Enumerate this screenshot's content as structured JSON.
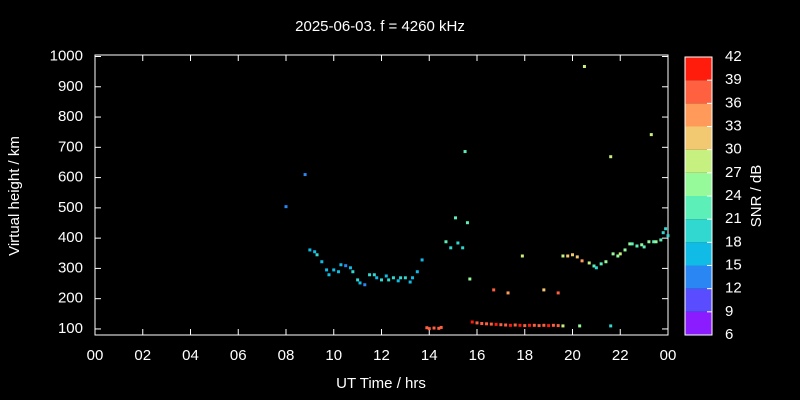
{
  "chart_data": {
    "type": "scatter",
    "title": "2025-06-03. f = 4260 kHz",
    "x_label": "UT Time / hrs",
    "y_label": "Virtual height / km",
    "x": [
      8.0,
      8.8,
      9.0,
      9.2,
      9.3,
      9.5,
      9.7,
      9.8,
      10.0,
      10.2,
      10.3,
      10.5,
      10.7,
      10.8,
      11.0,
      11.1,
      11.3,
      11.5,
      11.7,
      11.8,
      12.0,
      12.2,
      12.3,
      12.5,
      12.7,
      12.8,
      13.0,
      13.2,
      13.3,
      13.5,
      13.7,
      13.9,
      14.0,
      14.2,
      14.4,
      14.5,
      14.7,
      14.9,
      15.1,
      15.2,
      15.4,
      15.5,
      15.6,
      15.7,
      15.8,
      16.0,
      16.2,
      16.4,
      16.6,
      16.8,
      17.0,
      17.2,
      17.4,
      17.6,
      17.8,
      18.0,
      18.2,
      18.4,
      18.6,
      18.8,
      19.0,
      19.2,
      19.4,
      19.6,
      16.7,
      17.3,
      17.9,
      18.8,
      19.4,
      19.6,
      19.8,
      20.0,
      20.2,
      20.3,
      20.5,
      20.4,
      20.7,
      20.9,
      21.0,
      21.2,
      21.4,
      21.6,
      21.6,
      21.7,
      21.9,
      22.0,
      22.2,
      22.4,
      22.5,
      22.7,
      22.9,
      23.0,
      23.2,
      23.3,
      23.4,
      23.5,
      23.7,
      23.8,
      23.9,
      24.0
    ],
    "y": [
      504,
      610,
      361,
      355,
      345,
      322,
      295,
      279,
      295,
      289,
      312,
      309,
      302,
      289,
      262,
      252,
      246,
      279,
      279,
      269,
      262,
      275,
      262,
      269,
      259,
      269,
      269,
      255,
      269,
      289,
      328,
      104,
      101,
      103,
      102,
      105,
      388,
      368,
      467,
      384,
      368,
      686,
      451,
      265,
      123,
      120,
      118,
      117,
      116,
      115,
      114,
      113,
      112,
      113,
      112,
      111,
      112,
      112,
      111,
      112,
      111,
      112,
      111,
      110,
      229,
      219,
      341,
      229,
      219,
      341,
      341,
      345,
      338,
      110,
      967,
      325,
      318,
      308,
      302,
      315,
      322,
      669,
      110,
      348,
      341,
      348,
      361,
      381,
      381,
      374,
      378,
      371,
      388,
      742,
      388,
      388,
      394,
      418,
      431,
      408
    ],
    "snr": [
      14,
      12,
      16,
      16,
      19,
      15,
      17,
      17,
      15,
      16,
      15,
      14,
      15,
      18,
      20,
      15,
      14,
      18,
      18,
      17,
      19,
      17,
      18,
      19,
      17,
      20,
      19,
      15,
      17,
      15,
      17,
      37,
      38,
      37,
      36,
      38,
      22,
      20,
      22,
      18,
      20,
      22,
      21,
      25,
      39,
      38,
      38,
      37,
      38,
      39,
      38,
      37,
      39,
      38,
      40,
      38,
      39,
      38,
      37,
      38,
      39,
      38,
      37,
      28,
      38,
      33,
      28,
      31,
      36,
      28,
      30,
      30,
      31,
      25,
      27,
      35,
      28,
      22,
      20,
      22,
      26,
      27,
      18,
      25,
      26,
      27,
      24,
      24,
      22,
      23,
      24,
      22,
      24,
      27,
      22,
      24,
      23,
      19,
      18,
      20
    ],
    "xlim": [
      0,
      24
    ],
    "ylim": [
      80,
      1005
    ],
    "xticks": [
      {
        "value": 0,
        "label": "00"
      },
      {
        "value": 2,
        "label": "02"
      },
      {
        "value": 4,
        "label": "04"
      },
      {
        "value": 6,
        "label": "06"
      },
      {
        "value": 8,
        "label": "08"
      },
      10,
      12,
      14,
      16,
      18,
      20,
      22,
      {
        "value": 24,
        "label": "00"
      }
    ],
    "yticks": [
      100,
      200,
      300,
      400,
      500,
      600,
      700,
      800,
      900,
      1000
    ],
    "colorbar": {
      "label": "SNR / dB",
      "lim": [
        6,
        42
      ],
      "ticks": [
        6,
        9,
        12,
        15,
        18,
        21,
        24,
        27,
        30,
        33,
        36,
        39,
        42
      ],
      "colors": [
        "#8a1cff",
        "#5a4cff",
        "#2a86f2",
        "#10bce6",
        "#30d8d0",
        "#5cf0b8",
        "#96f99a",
        "#c6f080",
        "#f2c870",
        "#ff9a5a",
        "#ff6040",
        "#ff1c0c"
      ]
    }
  }
}
